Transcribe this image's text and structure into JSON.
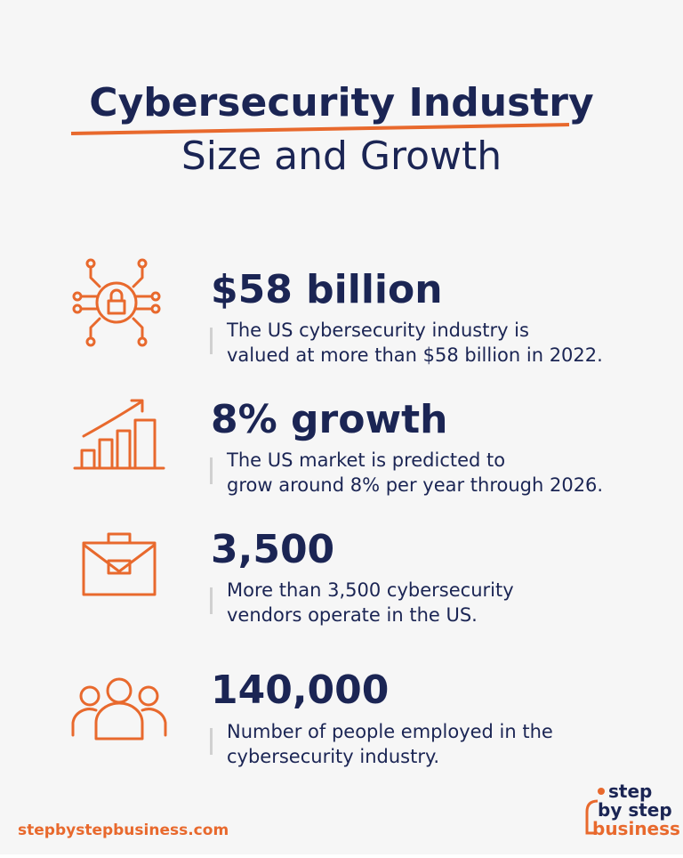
{
  "header": {
    "title": "Cybersecurity Industry",
    "subtitle": "Size and Growth"
  },
  "stats": [
    {
      "headline": "$58 billion",
      "description": [
        "The US cybersecurity industry is",
        "valued at more than $58 billion in 2022."
      ]
    },
    {
      "headline": "8% growth",
      "description": [
        "The US market is predicted to",
        "grow around 8% per year through 2026."
      ]
    },
    {
      "headline": "3,500",
      "description": [
        "More than 3,500 cybersecurity",
        "vendors operate in the US."
      ]
    },
    {
      "headline": "140,000",
      "description": [
        "Number of people employed in the",
        "cybersecurity industry."
      ]
    }
  ],
  "footer": {
    "url": "stepbystepbusiness.com",
    "logo": [
      "step",
      "by step",
      "business"
    ]
  }
}
